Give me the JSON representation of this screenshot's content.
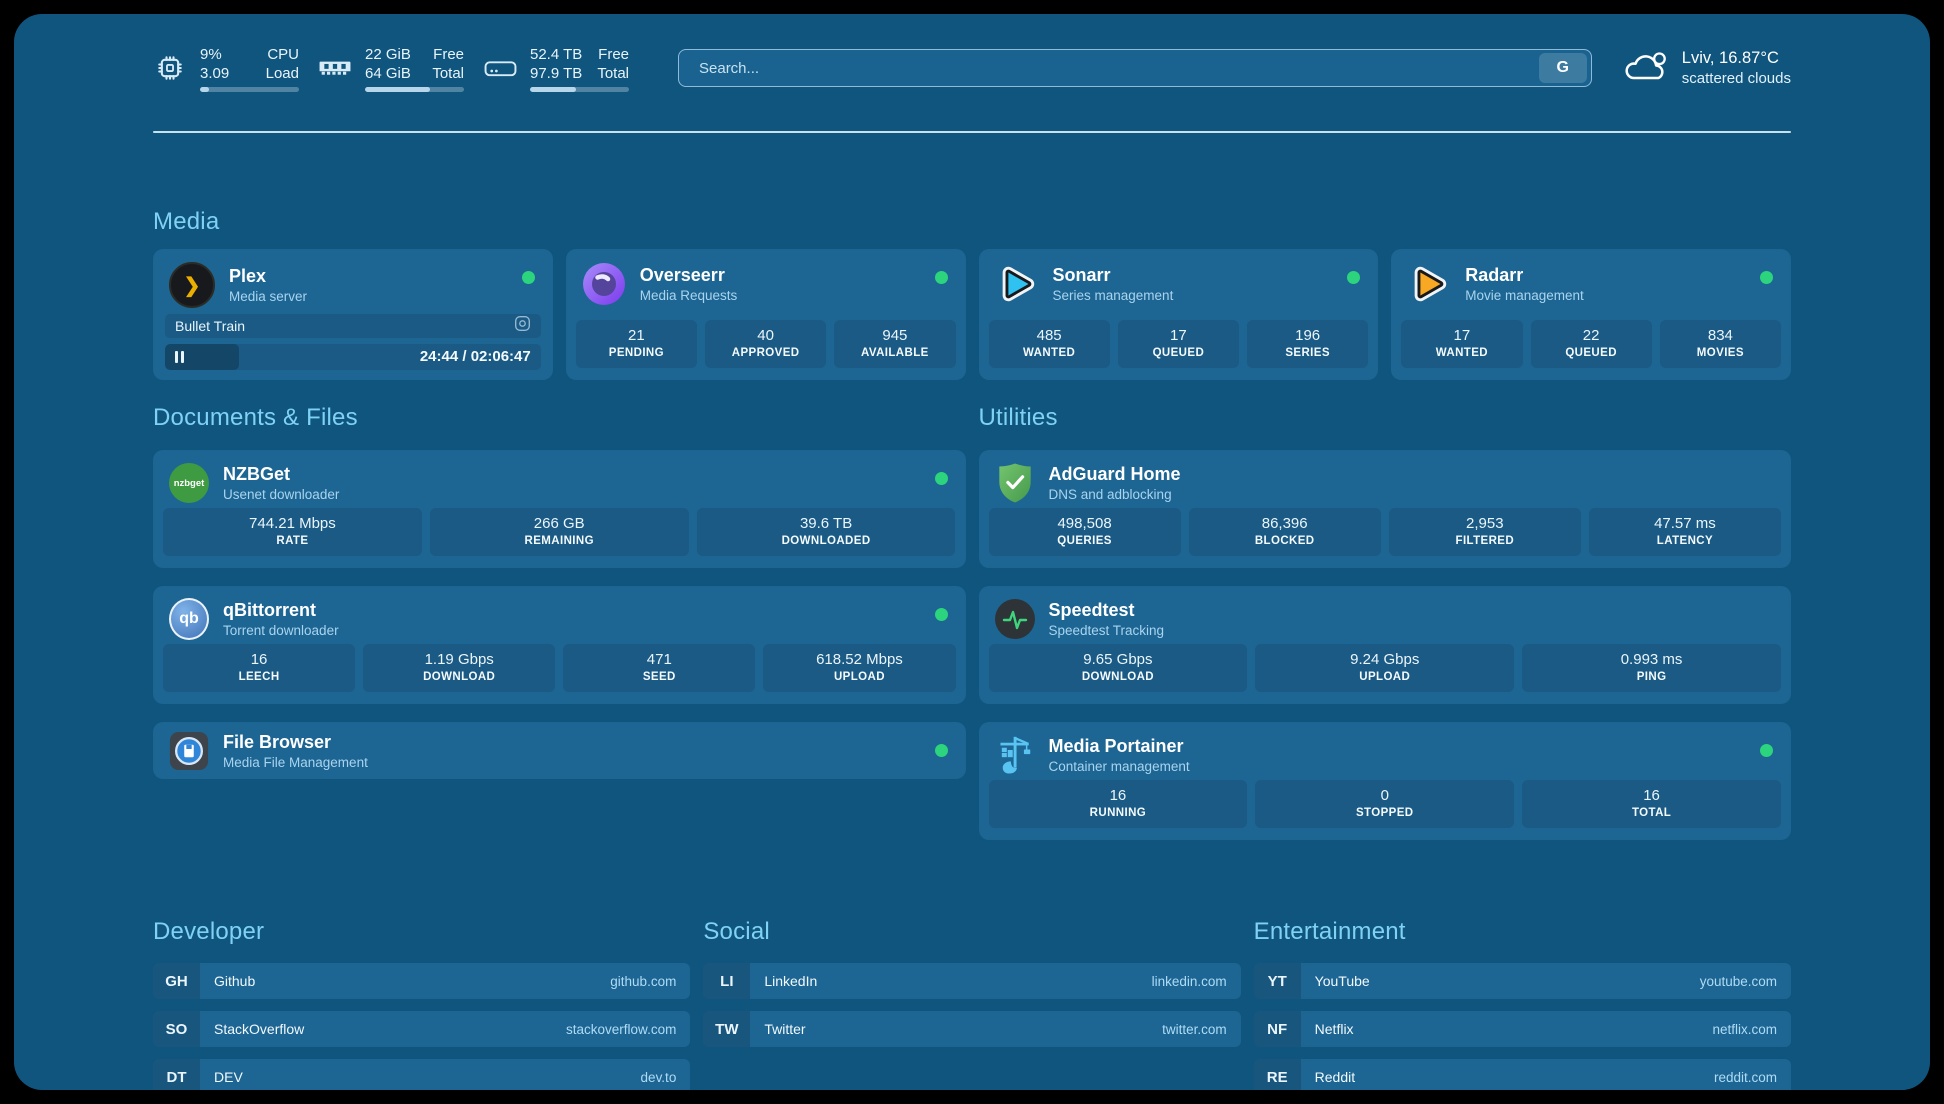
{
  "colors": {
    "panel_bg": "#0F557E",
    "card_bg": "#1D6593",
    "status_green": "#2BD47D",
    "section_title": "#7FD2F4",
    "plex_gold": "#EBAF00",
    "sonarr_cyan": "#2FC1F0",
    "radarr_orange": "#F8A823",
    "nzbget_green": "#3E9B41",
    "adguard_green": "#5DBB63",
    "qbittorrent_blue": "#4173B8",
    "speedtest_pulse": "#3ED67C",
    "portainer_blue": "#59C4F2",
    "filebrowser_blue": "#2F86D8",
    "overseerr_purple": "#8B5CF6"
  },
  "system": {
    "cpu": {
      "icon": "cpu-chip-icon",
      "values": [
        "9%",
        "3.09"
      ],
      "labels": [
        "CPU",
        "Load"
      ],
      "progress_pct": 9
    },
    "memory": {
      "icon": "memory-icon",
      "values": [
        "22 GiB",
        "64 GiB"
      ],
      "labels": [
        "Free",
        "Total"
      ],
      "progress_pct": 66
    },
    "disk": {
      "icon": "hard-drive-icon",
      "values": [
        "52.4 TB",
        "97.9 TB"
      ],
      "labels": [
        "Free",
        "Total"
      ],
      "progress_pct": 46
    }
  },
  "search": {
    "placeholder": "Search...",
    "engine_button": "G"
  },
  "weather": {
    "icon": "cloud-icon",
    "location_temp": "Lviv, 16.87°C",
    "condition": "scattered clouds"
  },
  "sections": {
    "media": "Media",
    "documents": "Documents & Files",
    "utilities": "Utilities",
    "developer": "Developer",
    "social": "Social",
    "entertainment": "Entertainment"
  },
  "apps": {
    "plex": {
      "name": "Plex",
      "desc": "Media server",
      "status": "online",
      "now_playing": {
        "title": "Bullet Train",
        "time_display": "24:44 / 02:06:47",
        "progress_pct": 19.6
      }
    },
    "overseerr": {
      "name": "Overseerr",
      "desc": "Media Requests",
      "status": "online",
      "stats": [
        {
          "value": "21",
          "label": "PENDING"
        },
        {
          "value": "40",
          "label": "APPROVED"
        },
        {
          "value": "945",
          "label": "AVAILABLE"
        }
      ]
    },
    "sonarr": {
      "name": "Sonarr",
      "desc": "Series management",
      "status": "online",
      "stats": [
        {
          "value": "485",
          "label": "WANTED"
        },
        {
          "value": "17",
          "label": "QUEUED"
        },
        {
          "value": "196",
          "label": "SERIES"
        }
      ]
    },
    "radarr": {
      "name": "Radarr",
      "desc": "Movie management",
      "status": "online",
      "stats": [
        {
          "value": "17",
          "label": "WANTED"
        },
        {
          "value": "22",
          "label": "QUEUED"
        },
        {
          "value": "834",
          "label": "MOVIES"
        }
      ]
    },
    "nzbget": {
      "name": "NZBGet",
      "desc": "Usenet downloader",
      "status": "online",
      "icon_text": "nzbget",
      "stats": [
        {
          "value": "744.21 Mbps",
          "label": "RATE"
        },
        {
          "value": "266 GB",
          "label": "REMAINING"
        },
        {
          "value": "39.6 TB",
          "label": "DOWNLOADED"
        }
      ]
    },
    "adguard": {
      "name": "AdGuard Home",
      "desc": "DNS and adblocking",
      "stats": [
        {
          "value": "498,508",
          "label": "QUERIES"
        },
        {
          "value": "86,396",
          "label": "BLOCKED"
        },
        {
          "value": "2,953",
          "label": "FILTERED"
        },
        {
          "value": "47.57 ms",
          "label": "LATENCY"
        }
      ]
    },
    "qbittorrent": {
      "name": "qBittorrent",
      "desc": "Torrent downloader",
      "status": "online",
      "icon_text": "qb",
      "stats": [
        {
          "value": "16",
          "label": "LEECH"
        },
        {
          "value": "1.19 Gbps",
          "label": "DOWNLOAD"
        },
        {
          "value": "471",
          "label": "SEED"
        },
        {
          "value": "618.52 Mbps",
          "label": "UPLOAD"
        }
      ]
    },
    "speedtest": {
      "name": "Speedtest",
      "desc": "Speedtest Tracking",
      "stats": [
        {
          "value": "9.65 Gbps",
          "label": "DOWNLOAD"
        },
        {
          "value": "9.24 Gbps",
          "label": "UPLOAD"
        },
        {
          "value": "0.993 ms",
          "label": "PING"
        }
      ]
    },
    "filebrowser": {
      "name": "File Browser",
      "desc": "Media File Management",
      "status": "online"
    },
    "portainer": {
      "name": "Media Portainer",
      "desc": "Container management",
      "status": "online",
      "stats": [
        {
          "value": "16",
          "label": "RUNNING"
        },
        {
          "value": "0",
          "label": "STOPPED"
        },
        {
          "value": "16",
          "label": "TOTAL"
        }
      ]
    }
  },
  "bookmarks": {
    "developer": [
      {
        "abbr": "GH",
        "name": "Github",
        "url": "github.com"
      },
      {
        "abbr": "SO",
        "name": "StackOverflow",
        "url": "stackoverflow.com"
      },
      {
        "abbr": "DT",
        "name": "DEV",
        "url": "dev.to"
      }
    ],
    "social": [
      {
        "abbr": "LI",
        "name": "LinkedIn",
        "url": "linkedin.com"
      },
      {
        "abbr": "TW",
        "name": "Twitter",
        "url": "twitter.com"
      }
    ],
    "entertainment": [
      {
        "abbr": "YT",
        "name": "YouTube",
        "url": "youtube.com"
      },
      {
        "abbr": "NF",
        "name": "Netflix",
        "url": "netflix.com"
      },
      {
        "abbr": "RE",
        "name": "Reddit",
        "url": "reddit.com"
      }
    ]
  }
}
